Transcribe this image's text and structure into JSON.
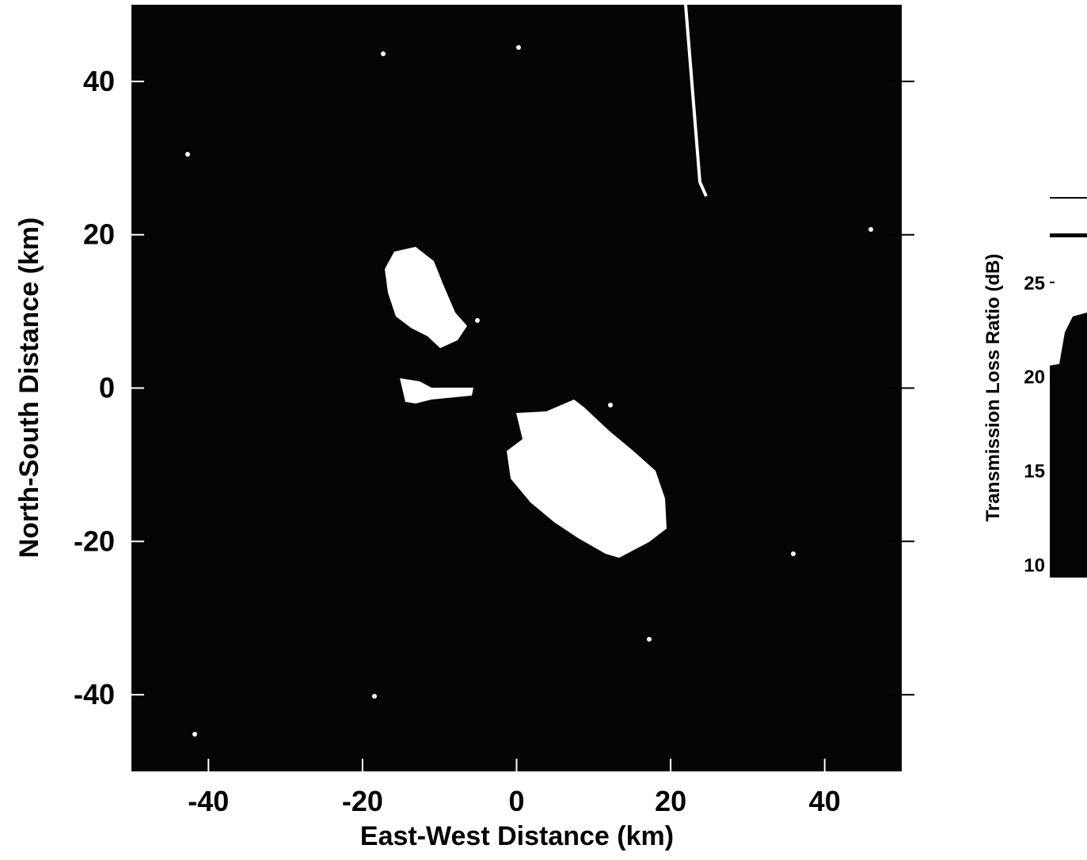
{
  "chart_data": {
    "type": "image",
    "xlabel": "East-West Distance (km)",
    "ylabel": "North-South Distance (km)",
    "xlim": [
      -50,
      50
    ],
    "xticks": [
      -40,
      -20,
      0,
      20,
      40
    ],
    "ylim": [
      -50,
      50
    ],
    "yticks": [
      -40,
      -20,
      0,
      20,
      40
    ],
    "colorbar": {
      "label": "Transmission Loss Ratio (dB)",
      "lim": [
        9.3,
        29.5
      ],
      "ticks": [
        10,
        15,
        20,
        25
      ]
    },
    "background": "#050505",
    "foreground": "#ffffff"
  }
}
